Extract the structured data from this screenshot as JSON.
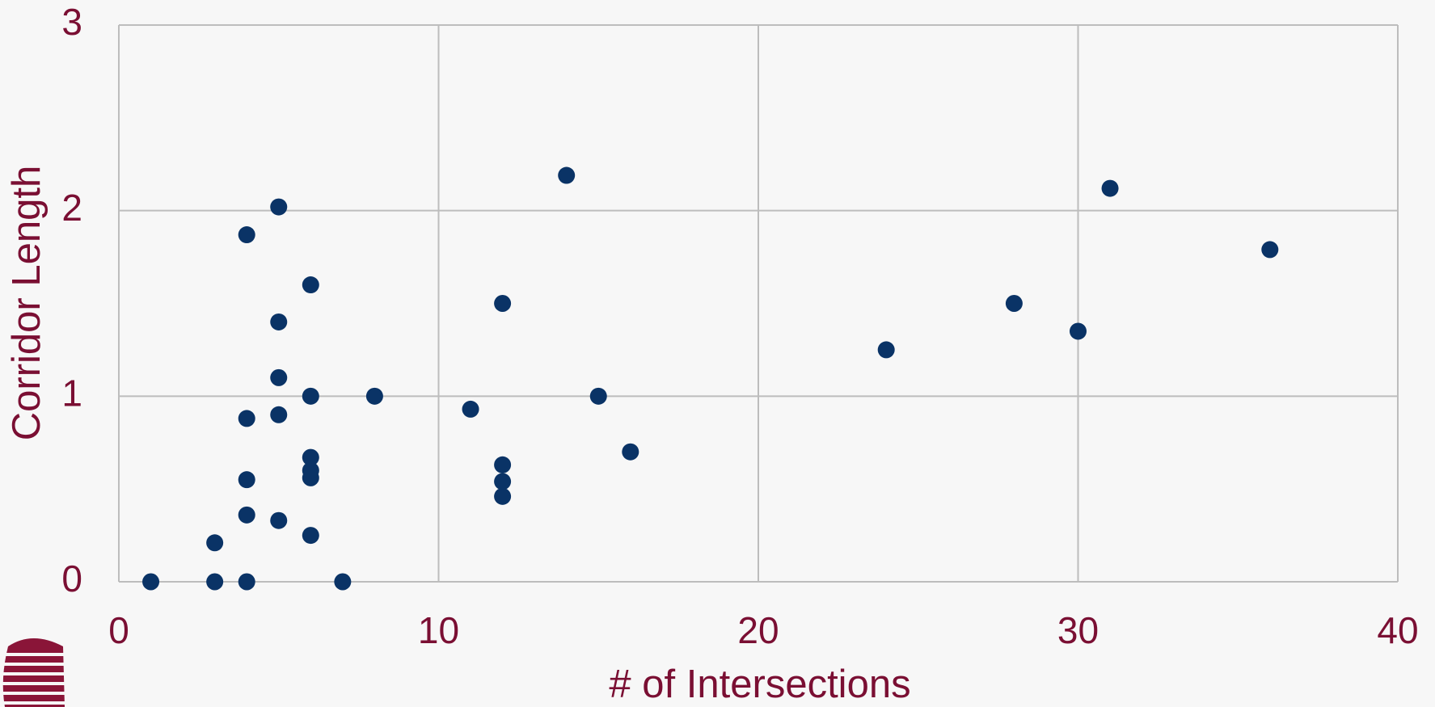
{
  "chart_data": {
    "type": "scatter",
    "x_label": "# of Intersections",
    "y_label": "Corridor Length",
    "color": "#0a3366",
    "grid": true,
    "xlim": [
      0,
      40
    ],
    "xticks": [
      0,
      10,
      20,
      30,
      40
    ],
    "ylim": [
      0,
      3
    ],
    "yticks": [
      0,
      1,
      2,
      3
    ],
    "x": [
      1,
      3,
      4,
      7,
      3,
      4,
      5,
      6,
      4,
      6,
      6,
      6,
      4,
      5,
      6,
      8,
      5,
      5,
      6,
      4,
      5,
      11,
      12,
      12,
      12,
      12,
      14,
      15,
      16,
      24,
      28,
      30,
      31,
      36
    ],
    "values": [
      0,
      0,
      0,
      0,
      0.21,
      0.36,
      0.33,
      0.25,
      0.55,
      0.56,
      0.6,
      0.67,
      0.88,
      0.9,
      1.0,
      1.0,
      1.1,
      1.4,
      1.6,
      1.87,
      2.02,
      0.93,
      0.46,
      0.54,
      0.63,
      1.5,
      2.19,
      1.0,
      0.7,
      1.25,
      1.5,
      1.35,
      2.12,
      1.79
    ]
  }
}
